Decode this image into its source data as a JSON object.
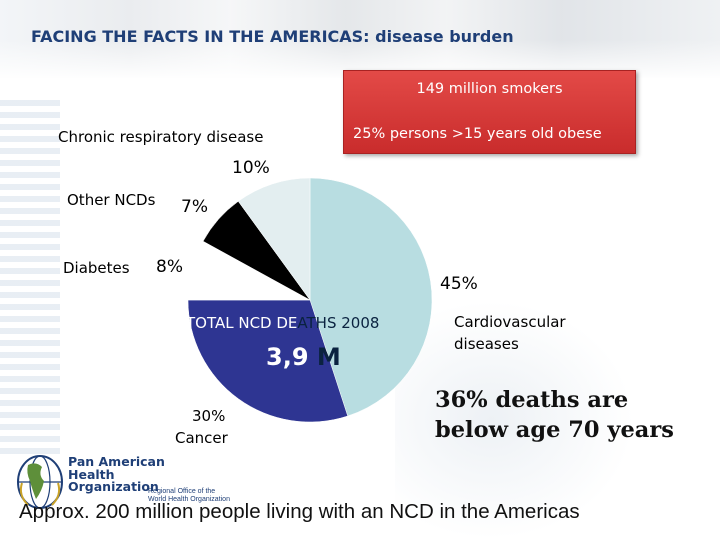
{
  "header": {
    "title": "FACING THE FACTS IN THE AMERICAS: disease burden"
  },
  "callout": {
    "line1": "149 million smokers",
    "line2": "25% persons >15 years old obese",
    "color": "#d63a38"
  },
  "chart_data": {
    "type": "pie",
    "title": "",
    "center_label": "TOTAL NCD DEATHS 2008",
    "center_value": "3,9 M",
    "slices": [
      {
        "name": "Cardiovascular diseases",
        "value": 45,
        "label": "45%",
        "color": "#b8dde1"
      },
      {
        "name": "Cancer",
        "value": 30,
        "label": "30%",
        "color": "#2e3592"
      },
      {
        "name": "Diabetes",
        "value": 8,
        "label": "8%",
        "color": "#ffffff"
      },
      {
        "name": "Other NCDs",
        "value": 7,
        "label": "7%",
        "color": "#000000"
      },
      {
        "name": "Chronic respiratory disease",
        "value": 10,
        "label": "10%",
        "color": "#e3eef0"
      }
    ]
  },
  "labels": {
    "cardio_pct": "45%",
    "cardio_name_1": "Cardiovascular",
    "cardio_name_2": "diseases",
    "cancer_pct": "30%",
    "cancer_name": "Cancer",
    "diabetes_pct": "8%",
    "diabetes_name": "Diabetes",
    "other_pct": "7%",
    "other_name": "Other NCDs",
    "resp_pct": "10%",
    "resp_name": "Chronic respiratory disease"
  },
  "center": {
    "label_main": "TOTAL NCD DE",
    "label_tail": "ATHS 2008",
    "value_main": "3,9 ",
    "value_tail": "M"
  },
  "note": {
    "line1": "36% deaths are",
    "line2": "below age 70 years"
  },
  "logo": {
    "line1": "Pan American",
    "line2": "Health",
    "line3": "Organization",
    "sub1": "Regional Office of the",
    "sub2": "World Health Organization"
  },
  "footer": {
    "text": "Approx. 200 million people living with an NCD in the Americas"
  }
}
